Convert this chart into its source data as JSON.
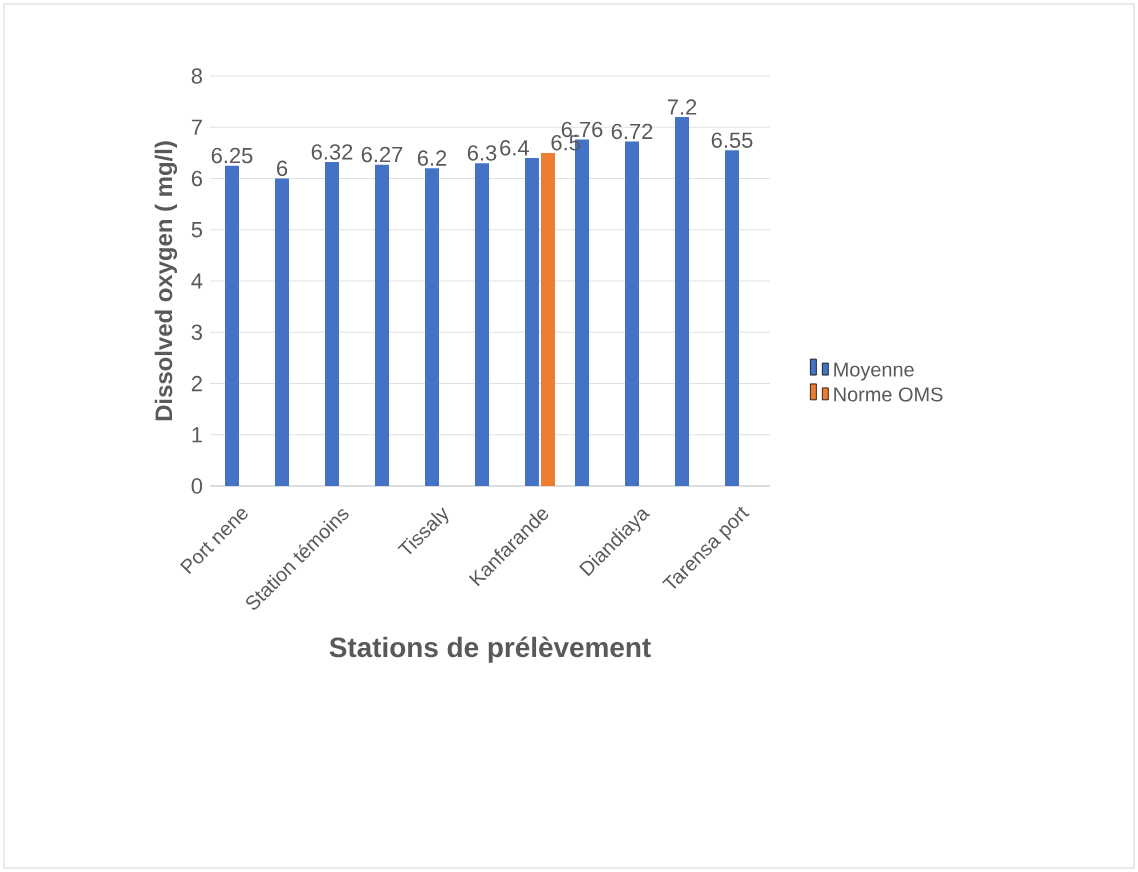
{
  "chart_data": {
    "type": "bar",
    "xlabel": "Stations de prélèvement",
    "ylabel": "Dissolved oxygen ( mg/l)",
    "categories": [
      "Port nene",
      null,
      "Station témoins",
      null,
      "Tissaly",
      null,
      "Kanfarande",
      null,
      "Diandiaya",
      null,
      "Tarensa port"
    ],
    "series": [
      {
        "name": "Moyenne",
        "color": "#4472c4",
        "values": [
          6.25,
          6,
          6.32,
          6.27,
          6.2,
          6.3,
          6.4,
          6.76,
          6.72,
          7.2,
          6.55
        ]
      },
      {
        "name": "Norme OMS",
        "color": "#ed7d31",
        "values": [
          null,
          null,
          null,
          null,
          null,
          null,
          6.5,
          null,
          null,
          null,
          null
        ]
      }
    ],
    "ylim": [
      0,
      8
    ],
    "yticks": [
      0,
      1,
      2,
      3,
      4,
      5,
      6,
      7,
      8
    ],
    "grid": "y",
    "legend": "right",
    "data_labels": true
  }
}
